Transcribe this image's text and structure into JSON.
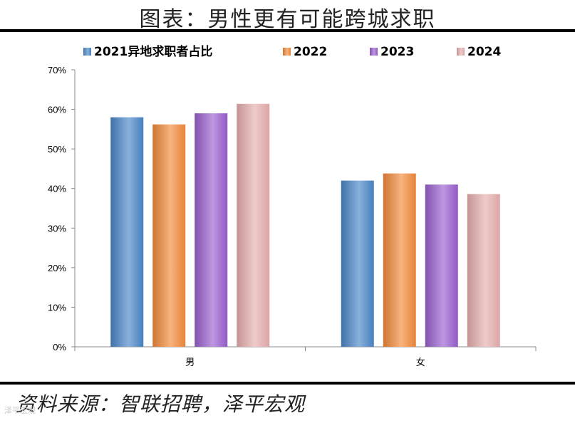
{
  "header": {
    "title": "图表：男性更有可能跨城求职"
  },
  "footer": {
    "source": "资料来源：智联招聘，泽平宏观",
    "watermark": "泽平宏观"
  },
  "chart_data": {
    "type": "bar",
    "categories": [
      "男",
      "女"
    ],
    "series": [
      {
        "name": "2021异地求职者占比",
        "values": [
          0.58,
          0.42
        ],
        "color": "#4a86c8"
      },
      {
        "name": "2022",
        "values": [
          0.562,
          0.438
        ],
        "color": "#f28a3a"
      },
      {
        "name": "2023",
        "values": [
          0.59,
          0.41
        ],
        "color": "#9a5fcf"
      },
      {
        "name": "2024",
        "values": [
          0.614,
          0.386
        ],
        "color": "#e6aeae"
      }
    ],
    "ylim": [
      0,
      0.7
    ],
    "yticks": [
      "0%",
      "10%",
      "20%",
      "30%",
      "40%",
      "50%",
      "60%",
      "70%"
    ],
    "legend": "top",
    "grid": false
  }
}
